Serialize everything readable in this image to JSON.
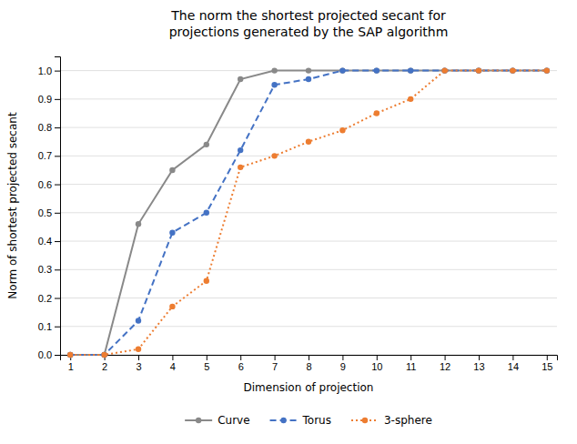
{
  "chart_data": {
    "type": "line",
    "title": "The norm the shortest projected secant for\nprojections generated by the SAP algorithm",
    "x_label": "Dimension of projection",
    "y_label": "Norm of shortest projected secant",
    "x": [
      1,
      2,
      3,
      4,
      5,
      6,
      7,
      8,
      9,
      10,
      11,
      12,
      13,
      14,
      15
    ],
    "series": [
      {
        "name": "Curve",
        "color": "#898989",
        "line_style": "solid",
        "marker": "circle",
        "values": [
          0,
          0,
          0.46,
          0.65,
          0.74,
          0.97,
          1.0,
          1.0,
          1.0,
          1.0,
          1.0,
          1.0,
          1.0,
          1.0,
          1.0
        ]
      },
      {
        "name": "Torus",
        "color": "#4472C4",
        "line_style": "dashed",
        "marker": "circle",
        "values": [
          0,
          0,
          0.12,
          0.43,
          0.5,
          0.72,
          0.95,
          0.97,
          1.0,
          1.0,
          1.0,
          1.0,
          1.0,
          1.0,
          1.0
        ]
      },
      {
        "name": "3-sphere",
        "color": "#ED7D31",
        "line_style": "dotted",
        "marker": "circle",
        "values": [
          0,
          0,
          0.02,
          0.17,
          0.26,
          0.66,
          0.7,
          0.75,
          0.79,
          0.85,
          0.9,
          1.0,
          1.0,
          1.0,
          1.0
        ]
      }
    ],
    "xlim": [
      0.7,
      15.3
    ],
    "xticks": [
      1,
      2,
      3,
      4,
      5,
      6,
      7,
      8,
      9,
      10,
      11,
      12,
      13,
      14,
      15
    ],
    "ylim": [
      0,
      1.05
    ],
    "yticks": [
      {
        "value": 0,
        "label": "0.0"
      },
      0.1,
      0.2,
      0.3,
      0.4,
      0.5,
      0.6,
      0.7,
      0.8,
      0.9,
      {
        "value": 1.0,
        "label": "1.0"
      }
    ],
    "grid": true,
    "legend": "bottom"
  }
}
